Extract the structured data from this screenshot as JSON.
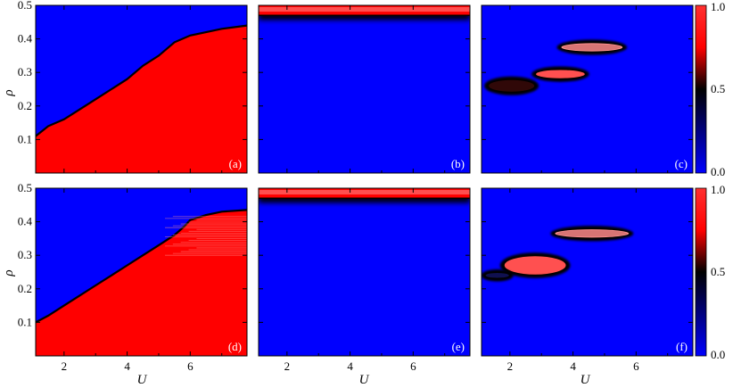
{
  "chart_data": {
    "type": "heatmap",
    "xlabel": "U",
    "ylabel": "ρ",
    "xlim": [
      1.1,
      7.8
    ],
    "ylim": [
      0.0,
      0.5
    ],
    "x_ticks": [
      2,
      4,
      6
    ],
    "y_ticks": [
      0.1,
      0.2,
      0.3,
      0.4,
      0.5
    ],
    "colorbar": {
      "range": [
        0.0,
        1.0
      ],
      "ticks": [
        "0.0",
        "0.5",
        "1.0"
      ],
      "colors": [
        "#0000ff",
        "#000000",
        "#ff0000",
        "#ff9090"
      ]
    },
    "panels": [
      {
        "label": "(a)",
        "boundary": [
          [
            1.1,
            0.11
          ],
          [
            1.5,
            0.14
          ],
          [
            2.0,
            0.16
          ],
          [
            2.5,
            0.19
          ],
          [
            3.0,
            0.22
          ],
          [
            3.5,
            0.25
          ],
          [
            4.0,
            0.28
          ],
          [
            4.5,
            0.32
          ],
          [
            5.0,
            0.35
          ],
          [
            5.5,
            0.39
          ],
          [
            6.0,
            0.41
          ],
          [
            6.5,
            0.42
          ],
          [
            7.0,
            0.43
          ],
          [
            7.8,
            0.44
          ]
        ],
        "blobs": []
      },
      {
        "label": "(b)",
        "band_bottom": 0.47,
        "blobs": []
      },
      {
        "label": "(c)",
        "blobs": [
          {
            "u": [
              3.6,
              5.6
            ],
            "rho": [
              0.36,
              0.39
            ],
            "value": 0.85
          },
          {
            "u": [
              2.8,
              4.4
            ],
            "rho": [
              0.28,
              0.31
            ],
            "value": 0.6
          },
          {
            "u": [
              1.3,
              2.8
            ],
            "rho": [
              0.24,
              0.28
            ],
            "value": 0.5
          }
        ]
      },
      {
        "label": "(d)",
        "boundary": [
          [
            1.1,
            0.1
          ],
          [
            1.5,
            0.12
          ],
          [
            2.0,
            0.15
          ],
          [
            2.5,
            0.18
          ],
          [
            3.0,
            0.21
          ],
          [
            3.5,
            0.24
          ],
          [
            4.0,
            0.27
          ],
          [
            4.5,
            0.3
          ],
          [
            5.0,
            0.33
          ],
          [
            5.5,
            0.36
          ],
          [
            5.8,
            0.385
          ],
          [
            6.0,
            0.405
          ],
          [
            6.5,
            0.42
          ],
          [
            7.0,
            0.43
          ],
          [
            7.8,
            0.435
          ]
        ],
        "nose_u": 4.3,
        "blobs": []
      },
      {
        "label": "(e)",
        "band_bottom": 0.47,
        "blobs": []
      },
      {
        "label": "(f)",
        "blobs": [
          {
            "u": [
              3.4,
              5.8
            ],
            "rho": [
              0.35,
              0.38
            ],
            "value": 0.85
          },
          {
            "u": [
              1.8,
              3.8
            ],
            "rho": [
              0.24,
              0.3
            ],
            "value": 0.55
          },
          {
            "u": [
              1.2,
              2.0
            ],
            "rho": [
              0.23,
              0.25
            ],
            "value": 0.4
          }
        ]
      }
    ]
  }
}
